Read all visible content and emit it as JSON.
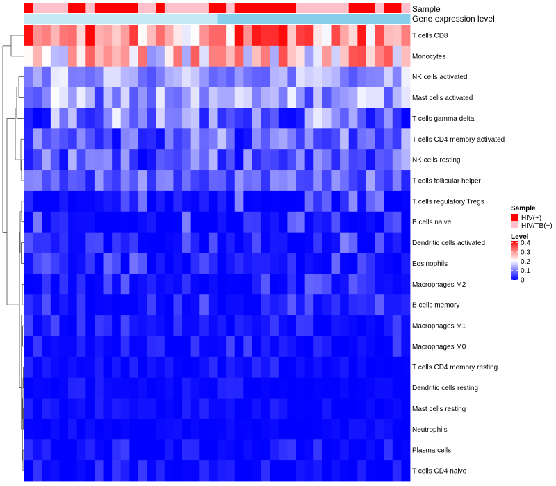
{
  "chart_data": {
    "type": "heatmap",
    "title": "",
    "column_annotations": [
      {
        "name": "Sample",
        "label": "Sample"
      },
      {
        "name": "Gene expression level",
        "label": "Gene expression level"
      }
    ],
    "rows": [
      "T cells CD8",
      "Monocytes",
      "NK cells activated",
      "Mast cells activated",
      "T cells gamma delta",
      "T cells CD4 memory activated",
      "NK cells resting",
      "T cells follicular helper",
      "T cells regulatory  Tregs",
      "B cells naive",
      "Dendritic cells activated",
      "Eosinophils",
      "Macrophages M2",
      "B cells memory",
      "Macrophages M1",
      "Macrophages M0",
      "T cells CD4 memory resting",
      "Dendritic cells resting",
      "Mast cells resting",
      "Neutrophils",
      "Plasma cells",
      "T cells CD4 naive"
    ],
    "n_columns": 44,
    "sample_groups": [
      0,
      1,
      1,
      1,
      1,
      0,
      0,
      1,
      0,
      0,
      0,
      0,
      0,
      1,
      1,
      0,
      1,
      1,
      1,
      1,
      1,
      0,
      0,
      1,
      0,
      0,
      0,
      0,
      0,
      0,
      0,
      1,
      1,
      1,
      1,
      1,
      1,
      0,
      0,
      0,
      1,
      0,
      0,
      1
    ],
    "row_level_ranges": [
      [
        0.18,
        0.42
      ],
      [
        0.12,
        0.36
      ],
      [
        0.05,
        0.2
      ],
      [
        0.04,
        0.21
      ],
      [
        0.0,
        0.2
      ],
      [
        0.0,
        0.17
      ],
      [
        0.0,
        0.15
      ],
      [
        0.02,
        0.14
      ],
      [
        0.0,
        0.12
      ],
      [
        0.0,
        0.12
      ],
      [
        0.0,
        0.11
      ],
      [
        0.0,
        0.1
      ],
      [
        0.0,
        0.09
      ],
      [
        0.0,
        0.08
      ],
      [
        0.0,
        0.06
      ],
      [
        0.0,
        0.06
      ],
      [
        0.0,
        0.04
      ],
      [
        0.0,
        0.04
      ],
      [
        0.0,
        0.03
      ],
      [
        0.0,
        0.02
      ],
      [
        0.0,
        0.05
      ],
      [
        0.0,
        0.05
      ]
    ],
    "legend": {
      "sample": {
        "title": "Sample",
        "items": [
          {
            "label": "HIV(+)",
            "color": "#ff0000"
          },
          {
            "label": "HIV/TB(+)",
            "color": "#ffc0cb"
          }
        ]
      },
      "level": {
        "title": "Level",
        "ticks": [
          "0.4",
          "0.3",
          "0.2",
          "0.1",
          "0"
        ],
        "tick_values": [
          0.4,
          0.3,
          0.2,
          0.1,
          0.0
        ],
        "range": [
          0,
          0.42
        ],
        "colors": [
          "#0000ff",
          "#ffffff",
          "#ff0000"
        ]
      }
    },
    "expression_bar": {
      "low_color": "#c6e9f7",
      "high_color": "#87ceeb",
      "split_column": 22
    }
  }
}
